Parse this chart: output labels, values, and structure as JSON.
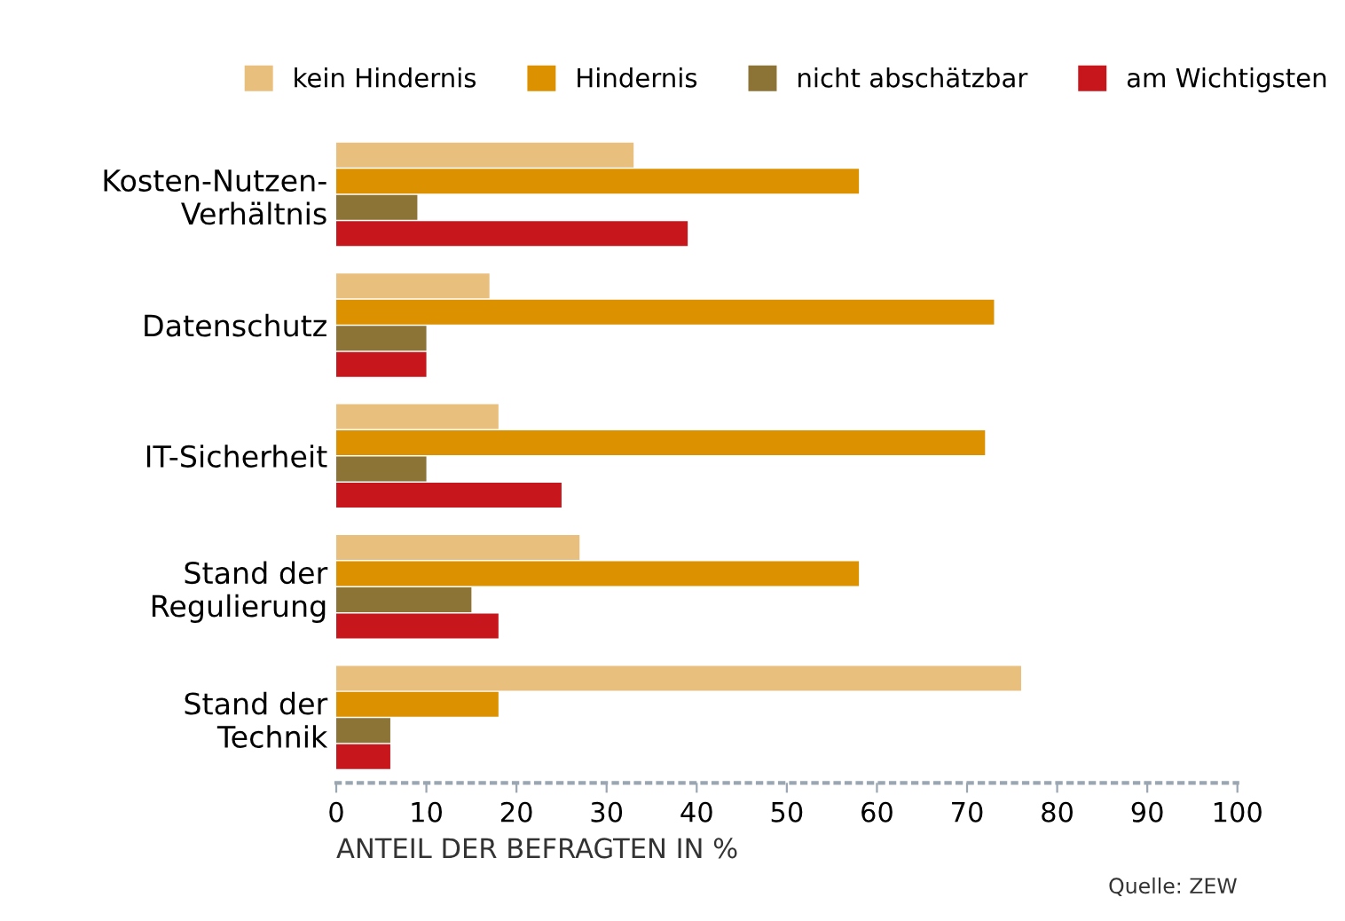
{
  "chart_data": {
    "type": "bar",
    "orientation": "horizontal",
    "categories": [
      "Kosten-Nutzen-\nVerhältnis",
      "Datenschutz",
      "IT-Sicherheit",
      "Stand der\nRegulierung",
      "Stand der\nTechnik"
    ],
    "series": [
      {
        "name": "kein Hindernis",
        "color": "#e8bf7c",
        "values": [
          33,
          17,
          18,
          27,
          76
        ]
      },
      {
        "name": "Hindernis",
        "color": "#dc9200",
        "values": [
          58,
          73,
          72,
          58,
          18
        ]
      },
      {
        "name": "nicht abschätzbar",
        "color": "#8c7336",
        "values": [
          9,
          10,
          10,
          15,
          6
        ]
      },
      {
        "name": "am Wichtigsten",
        "color": "#c8161d",
        "values": [
          39,
          10,
          25,
          18,
          6
        ]
      }
    ],
    "xlim": [
      0,
      100
    ],
    "xticks": [
      0,
      10,
      20,
      30,
      40,
      50,
      60,
      70,
      80,
      90,
      100
    ],
    "xlabel": "ANTEIL DER BEFRAGTEN IN %",
    "annotations": [
      "Quelle: ZEW"
    ],
    "legend": "top",
    "grid": false
  }
}
